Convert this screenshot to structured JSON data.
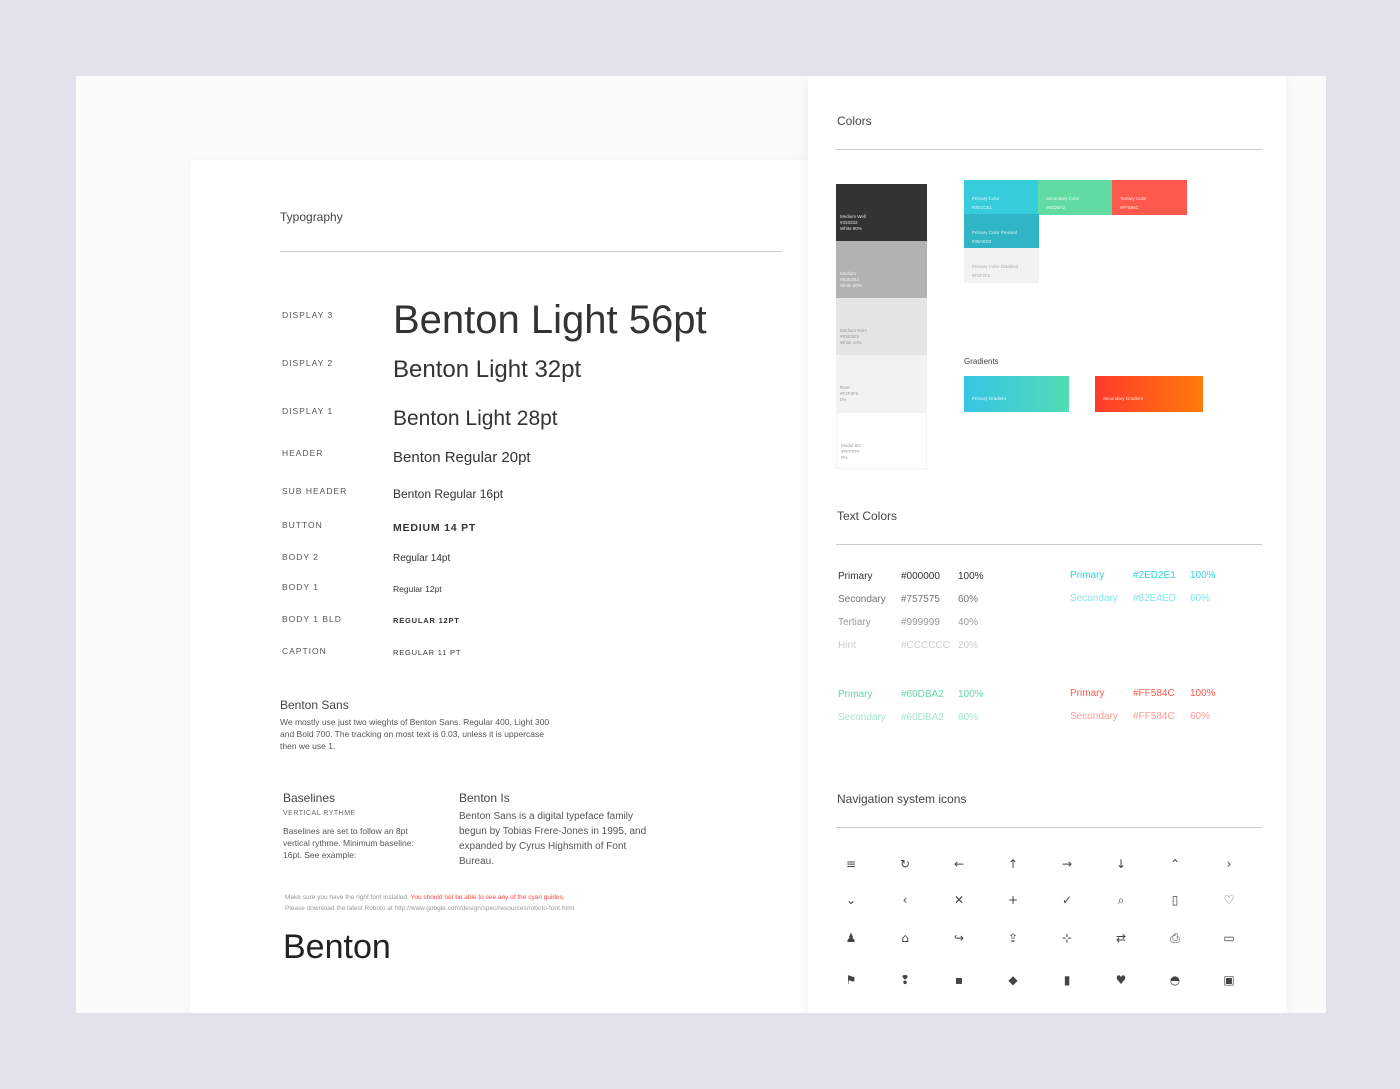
{
  "typography": {
    "title": "Typography",
    "rows": [
      {
        "label": "DISPLAY 3",
        "sample": "Benton Light 56pt"
      },
      {
        "label": "DISPLAY 2",
        "sample": "Benton Light 32pt"
      },
      {
        "label": "DISPLAY 1",
        "sample": "Benton Light 28pt"
      },
      {
        "label": "HEADER",
        "sample": "Benton Regular 20pt"
      },
      {
        "label": "SUB HEADER",
        "sample": "Benton Regular 16pt"
      },
      {
        "label": "BUTTON",
        "sample": "MEDIUM 14 PT"
      },
      {
        "label": "BODY 2",
        "sample": "Regular 14pt"
      },
      {
        "label": "BODY 1",
        "sample": "Regular 12pt"
      },
      {
        "label": "BODY 1 BLD",
        "sample": "REGULAR 12PT"
      },
      {
        "label": "CAPTION",
        "sample": "REGULAR 11 PT"
      }
    ],
    "benton_sans": {
      "title": "Benton Sans",
      "text": "We mostly use just two wieghts of Benton Sans. Regular 400, Light 300 and Bold 700. The tracking on most text is 0.03, unless it is uppercase then we use 1."
    },
    "baselines": {
      "title": "Baselines",
      "subtitle": "VERTICAL RYTHME",
      "text": "Baselines are set to follow an 8pt vertical rythme. Minimum baseline: 16pt. See example:"
    },
    "benton_is": {
      "title": "Benton Is",
      "text": "Benton Sans is a digital typeface family begun by Tobias Frere-Jones in 1995, and expanded by Cyrus Highsmith of Font Bureau."
    },
    "note1": "Make sure you have the right font installed.",
    "note_red": "You should not be able to see any of the cyan guides.",
    "note2": "Please download the latest Roboto at  http://www.google.com/design/spec/resources/roboto-font.html",
    "big": "Benton"
  },
  "colors": {
    "title": "Colors",
    "swatches": [
      {
        "name": "Medium Well",
        "hex": "#333333",
        "note": "White 80%",
        "color": "#333333"
      },
      {
        "name": "Medium",
        "hex": "#B2B2B2",
        "note": "White 50%",
        "color": "#B2B2B2"
      },
      {
        "name": "Medium Rare",
        "hex": "#E5E5E5",
        "note": "White 10%",
        "color": "#E5E5E5"
      },
      {
        "name": "Rare",
        "hex": "#F2F2F2",
        "note": "5%",
        "color": "#F2F2F2"
      },
      {
        "name": "Model BG",
        "hex": "#FFFFFF",
        "note": "0%",
        "color": "#FFFFFF"
      }
    ],
    "brand": [
      {
        "name": "Primary Color",
        "hex": "#2ECCE1",
        "color": "#36CCDB"
      },
      {
        "name": "Secondary Color",
        "hex": "#60DBA2",
        "color": "#60DBA2"
      },
      {
        "name": "Tertiary Color",
        "hex": "#FF584C",
        "color": "#FF584C"
      },
      {
        "name": "Primary Color Pressed",
        "hex": "#35AED3",
        "color": "#2FB5C6"
      },
      {
        "name": "Primary Color Disabled",
        "hex": "#F2F2F2",
        "color": "#F2F2F2"
      }
    ],
    "gradients_title": "Gradients",
    "gradients": [
      {
        "name": "Primary Gradient"
      },
      {
        "name": "Secondary Gradient"
      }
    ]
  },
  "text_colors": {
    "title": "Text Colors",
    "groups": [
      {
        "items": [
          {
            "name": "Primary",
            "hex": "#000000",
            "pct": "100%",
            "color": "#333333"
          },
          {
            "name": "Secondary",
            "hex": "#757575",
            "pct": "60%",
            "color": "#757575"
          },
          {
            "name": "Tertiary",
            "hex": "#999999",
            "pct": "40%",
            "color": "#999999"
          },
          {
            "name": "Hint",
            "hex": "#CCCCCC",
            "pct": "20%",
            "color": "#CCCCCC"
          }
        ]
      },
      {
        "items": [
          {
            "name": "Primary",
            "hex": "#2ED2E1",
            "pct": "100%",
            "color": "#2ED2E1"
          },
          {
            "name": "Secondary",
            "hex": "#82E4ED",
            "pct": "60%",
            "color": "#82E4ED"
          }
        ]
      },
      {
        "items": [
          {
            "name": "Primary",
            "hex": "#60DBA2",
            "pct": "100%",
            "color": "#60DBA2"
          },
          {
            "name": "Secondary",
            "hex": "#60DBA2",
            "pct": "60%",
            "color": "#A0E9C7"
          }
        ]
      },
      {
        "items": [
          {
            "name": "Primary",
            "hex": "#FF584C",
            "pct": "100%",
            "color": "#FF584C"
          },
          {
            "name": "Secondary",
            "hex": "#FF584C",
            "pct": "60%",
            "color": "#FF9B94"
          }
        ]
      }
    ]
  },
  "icons": {
    "title": "Navigation system icons",
    "list": [
      [
        "menu",
        "≡"
      ],
      [
        "refresh",
        "↻"
      ],
      [
        "arrow-left",
        "←"
      ],
      [
        "arrow-up",
        "↑"
      ],
      [
        "arrow-right",
        "→"
      ],
      [
        "arrow-down",
        "↓"
      ],
      [
        "chevron-up",
        "⌃"
      ],
      [
        "chevron-right",
        "›"
      ],
      [
        "chevron-down",
        "⌄"
      ],
      [
        "chevron-left",
        "‹"
      ],
      [
        "close",
        "✕"
      ],
      [
        "plus",
        "+"
      ],
      [
        "check",
        "✓"
      ],
      [
        "search",
        "⌕"
      ],
      [
        "bookmark-outline",
        "▯"
      ],
      [
        "heart-outline",
        "♡"
      ],
      [
        "person",
        "♟"
      ],
      [
        "home",
        "⌂"
      ],
      [
        "share",
        "↪"
      ],
      [
        "upload",
        "⇪"
      ],
      [
        "focus",
        "⊹"
      ],
      [
        "swap",
        "⇄"
      ],
      [
        "print",
        "⎙"
      ],
      [
        "card",
        "▭"
      ],
      [
        "flag",
        "⚑"
      ],
      [
        "pin",
        "❢"
      ],
      [
        "square",
        "▪"
      ],
      [
        "tag",
        "◆"
      ],
      [
        "bookmark",
        "▮"
      ],
      [
        "heart",
        "♥"
      ],
      [
        "inbox",
        "◓"
      ],
      [
        "film",
        "▣"
      ]
    ]
  }
}
